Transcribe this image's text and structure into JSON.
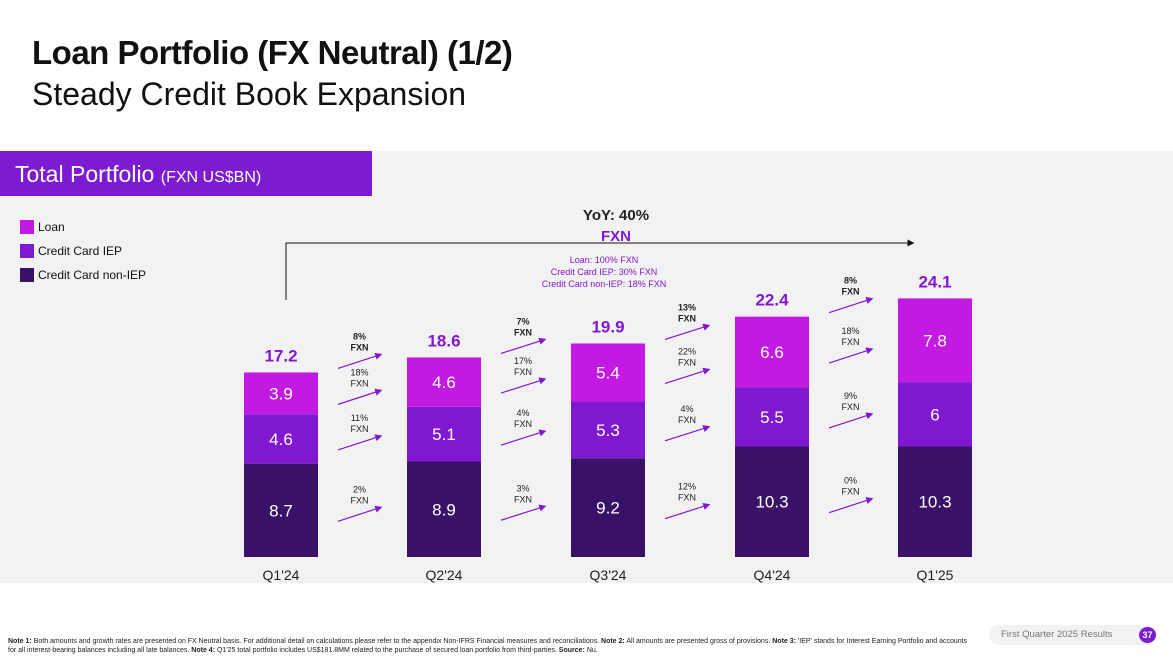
{
  "title": "Loan Portfolio (FX Neutral) (1/2)",
  "subtitle": "Steady Credit Book Expansion",
  "panel": {
    "title": "Total Portfolio",
    "unit": "(FXN US$BN)"
  },
  "legend": [
    {
      "label": "Loan",
      "color": "#c31ae1"
    },
    {
      "label": "Credit Card IEP",
      "color": "#8118d1"
    },
    {
      "label": "Credit Card non-IEP",
      "color": "#3a1168"
    }
  ],
  "yoy": {
    "label": "YoY: 40%",
    "sublabel": "FXN",
    "details": [
      "Loan: 100% FXN",
      "Credit Card IEP: 30% FXN",
      "Credit Card non-IEP: 18% FXN"
    ]
  },
  "chart_data": {
    "type": "bar",
    "stacked": true,
    "categories": [
      "Q1'24",
      "Q2'24",
      "Q3'24",
      "Q4'24",
      "Q1'25"
    ],
    "series": [
      {
        "name": "Credit Card non-IEP",
        "values": [
          8.7,
          8.9,
          9.2,
          10.3,
          10.3
        ],
        "color": "#3a1168"
      },
      {
        "name": "Credit Card IEP",
        "values": [
          4.6,
          5.1,
          5.3,
          5.5,
          6.0
        ],
        "color": "#8118d1"
      },
      {
        "name": "Loan",
        "values": [
          3.9,
          4.6,
          5.4,
          6.6,
          7.8
        ],
        "color": "#c31ae1"
      }
    ],
    "totals": [
      17.2,
      18.6,
      19.9,
      22.4,
      24.1
    ],
    "ylim": [
      0,
      26
    ],
    "growth": [
      {
        "total": [
          "8%",
          "FXN"
        ],
        "loan": [
          "18%",
          "FXN"
        ],
        "iep": [
          "11%",
          "FXN"
        ],
        "noniep": [
          "2%",
          "FXN"
        ]
      },
      {
        "total": [
          "7%",
          "FXN"
        ],
        "loan": [
          "17%",
          "FXN"
        ],
        "iep": [
          "4%",
          "FXN"
        ],
        "noniep": [
          "3%",
          "FXN"
        ]
      },
      {
        "total": [
          "13%",
          "FXN"
        ],
        "loan": [
          "22%",
          "FXN"
        ],
        "iep": [
          "4%",
          "FXN"
        ],
        "noniep": [
          "12%",
          "FXN"
        ]
      },
      {
        "total": [
          "8%",
          "FXN"
        ],
        "loan": [
          "18%",
          "FXN"
        ],
        "iep": [
          "9%",
          "FXN"
        ],
        "noniep": [
          "0%",
          "FXN"
        ]
      }
    ]
  },
  "footer": {
    "note1_label": "Note 1:",
    "note1": "Both amounts and growth rates are presented on FX Neutral basis. For additional detail on calculations please refer to the appendix Non-IFRS Financial measures and reconciliations.",
    "note2_label": "Note 2:",
    "note2": "All amounts are presented gross of provisions.",
    "note3_label": "Note 3:",
    "note3": "'IEP' stands for Interest Earning Portfolio and accounts for all interest-bearing balances including all late balances.",
    "note4_label": "Note 4:",
    "note4": "Q1'25 total portfolio includes US$181.8MM related to the purchase of secured loan portfolio from third-parties.",
    "source_label": "Source:",
    "source": "Nu.",
    "report": "First Quarter 2025 Results",
    "page": "37"
  }
}
